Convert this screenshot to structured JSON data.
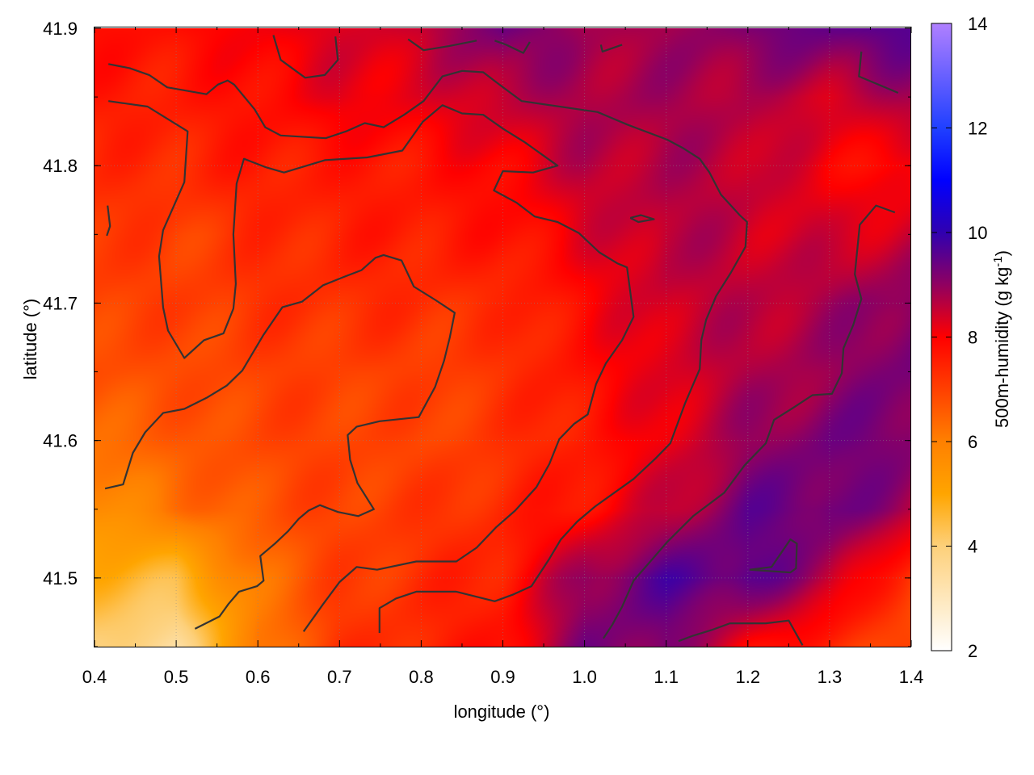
{
  "chart_data": {
    "type": "heatmap",
    "title": "",
    "xlabel": "longitude (°)",
    "ylabel": "latitude (°)",
    "colorbar_label": "500m-humidity (g kg",
    "colorbar_label_sup": "-1",
    "colorbar_label_end": ")",
    "xlim": [
      0.4,
      1.4
    ],
    "ylim": [
      41.45,
      41.9
    ],
    "xticks": [
      "0.4",
      "0.5",
      "0.6",
      "0.7",
      "0.8",
      "0.9",
      "1.0",
      "1.1",
      "1.2",
      "1.3",
      "1.4"
    ],
    "yticks": [
      "41.5",
      "41.6",
      "41.7",
      "41.8",
      "41.9"
    ],
    "grid": true,
    "colorbar": {
      "range": [
        2,
        14
      ],
      "ticks": [
        "2",
        "4",
        "6",
        "8",
        "10",
        "12",
        "14"
      ],
      "stops": [
        [
          2,
          "#ffffff"
        ],
        [
          4,
          "#fdd07a"
        ],
        [
          5,
          "#ffa500"
        ],
        [
          6,
          "#ff8000"
        ],
        [
          7,
          "#ff4000"
        ],
        [
          8,
          "#ff0000"
        ],
        [
          9,
          "#900060"
        ],
        [
          10,
          "#3000b0"
        ],
        [
          11,
          "#0000ff"
        ],
        [
          12,
          "#2040ff"
        ],
        [
          14,
          "#b080ff"
        ]
      ]
    },
    "grid_lon": [
      0.4,
      0.5,
      0.6,
      0.7,
      0.8,
      0.9,
      1.0,
      1.1,
      1.2,
      1.3,
      1.4
    ],
    "grid_lat": [
      41.9,
      41.85,
      41.8,
      41.75,
      41.7,
      41.65,
      41.6,
      41.55,
      41.5,
      41.45
    ],
    "values": [
      [
        7.8,
        7.8,
        8.1,
        8.3,
        8.5,
        9.4,
        8.8,
        8.8,
        9.2,
        9.5,
        9.6
      ],
      [
        7.6,
        7.6,
        7.8,
        8.2,
        8.2,
        8.6,
        8.8,
        8.8,
        8.7,
        8.4,
        8.8
      ],
      [
        7.3,
        7.4,
        7.6,
        7.6,
        7.7,
        8.0,
        8.6,
        8.7,
        8.6,
        8.0,
        7.8
      ],
      [
        7.2,
        7.0,
        7.3,
        7.5,
        7.6,
        7.7,
        8.2,
        8.7,
        8.5,
        8.3,
        8.5
      ],
      [
        7.0,
        7.0,
        7.2,
        7.3,
        7.3,
        7.3,
        7.9,
        8.5,
        8.6,
        8.8,
        9.2
      ],
      [
        6.8,
        6.8,
        7.0,
        7.0,
        7.0,
        7.2,
        7.8,
        8.3,
        8.7,
        8.9,
        9.3
      ],
      [
        6.3,
        6.6,
        6.9,
        7.0,
        6.9,
        7.2,
        7.6,
        8.2,
        8.9,
        9.3,
        9.2
      ],
      [
        5.6,
        6.2,
        6.7,
        7.0,
        7.1,
        7.4,
        7.8,
        8.5,
        9.4,
        9.4,
        8.8
      ],
      [
        4.8,
        4.5,
        6.2,
        7.0,
        7.3,
        7.6,
        9.0,
        9.6,
        9.6,
        8.7,
        7.0
      ],
      [
        4.0,
        3.5,
        6.0,
        7.2,
        7.4,
        7.8,
        9.2,
        9.2,
        8.0,
        7.4,
        6.8
      ]
    ],
    "contour_color": "#333333",
    "contours": [
      [
        [
          0.417,
          41.874
        ],
        [
          0.443,
          41.871
        ],
        [
          0.467,
          41.866
        ],
        [
          0.489,
          41.857
        ],
        [
          0.537,
          41.852
        ],
        [
          0.551,
          41.859
        ],
        [
          0.563,
          41.862
        ],
        [
          0.571,
          41.859
        ],
        [
          0.596,
          41.841
        ],
        [
          0.609,
          41.828
        ],
        [
          0.628,
          41.822
        ],
        [
          0.683,
          41.82
        ],
        [
          0.708,
          41.825
        ],
        [
          0.731,
          41.831
        ],
        [
          0.754,
          41.828
        ],
        [
          0.779,
          41.837
        ],
        [
          0.803,
          41.847
        ],
        [
          0.826,
          41.865
        ],
        [
          0.85,
          41.869
        ],
        [
          0.876,
          41.868
        ],
        [
          0.898,
          41.858
        ],
        [
          0.923,
          41.847
        ],
        [
          1.016,
          41.839
        ],
        [
          1.052,
          41.83
        ],
        [
          1.101,
          41.819
        ],
        [
          1.12,
          41.813
        ],
        [
          1.141,
          41.805
        ],
        [
          1.153,
          41.795
        ],
        [
          1.167,
          41.779
        ],
        [
          1.19,
          41.764
        ],
        [
          1.199,
          41.759
        ],
        [
          1.197,
          41.741
        ],
        [
          1.179,
          41.722
        ],
        [
          1.161,
          41.705
        ],
        [
          1.149,
          41.688
        ],
        [
          1.143,
          41.673
        ],
        [
          1.141,
          41.652
        ],
        [
          1.123,
          41.627
        ],
        [
          1.105,
          41.598
        ],
        [
          1.087,
          41.587
        ],
        [
          1.06,
          41.572
        ],
        [
          1.013,
          41.552
        ],
        [
          0.991,
          41.541
        ],
        [
          0.971,
          41.528
        ],
        [
          0.957,
          41.514
        ],
        [
          0.935,
          41.494
        ],
        [
          0.913,
          41.488
        ],
        [
          0.89,
          41.483
        ],
        [
          0.843,
          41.49
        ],
        [
          0.794,
          41.49
        ],
        [
          0.769,
          41.485
        ],
        [
          0.749,
          41.478
        ],
        [
          0.749,
          41.46
        ]
      ],
      [
        [
          0.417,
          41.847
        ],
        [
          0.465,
          41.843
        ],
        [
          0.514,
          41.825
        ],
        [
          0.51,
          41.788
        ],
        [
          0.484,
          41.753
        ],
        [
          0.479,
          41.734
        ],
        [
          0.484,
          41.697
        ],
        [
          0.49,
          41.68
        ],
        [
          0.51,
          41.66
        ],
        [
          0.534,
          41.673
        ],
        [
          0.558,
          41.678
        ],
        [
          0.57,
          41.696
        ],
        [
          0.573,
          41.714
        ],
        [
          0.57,
          41.75
        ],
        [
          0.574,
          41.787
        ],
        [
          0.583,
          41.805
        ],
        [
          0.609,
          41.799
        ],
        [
          0.632,
          41.795
        ],
        [
          0.682,
          41.804
        ],
        [
          0.734,
          41.806
        ],
        [
          0.777,
          41.811
        ],
        [
          0.802,
          41.832
        ],
        [
          0.826,
          41.844
        ],
        [
          0.85,
          41.838
        ],
        [
          0.876,
          41.837
        ],
        [
          0.9,
          41.827
        ],
        [
          0.927,
          41.817
        ],
        [
          0.967,
          41.8
        ],
        [
          0.937,
          41.795
        ],
        [
          0.9,
          41.796
        ],
        [
          0.889,
          41.782
        ],
        [
          0.917,
          41.773
        ],
        [
          0.939,
          41.763
        ],
        [
          0.967,
          41.759
        ],
        [
          0.993,
          41.751
        ],
        [
          1.018,
          41.737
        ],
        [
          1.04,
          41.729
        ],
        [
          1.052,
          41.726
        ],
        [
          1.06,
          41.69
        ],
        [
          1.046,
          41.673
        ],
        [
          1.026,
          41.656
        ],
        [
          1.014,
          41.641
        ],
        [
          1.004,
          41.619
        ],
        [
          0.987,
          41.612
        ],
        [
          0.969,
          41.601
        ],
        [
          0.957,
          41.583
        ],
        [
          0.941,
          41.566
        ],
        [
          0.915,
          41.549
        ],
        [
          0.892,
          41.537
        ],
        [
          0.868,
          41.522
        ],
        [
          0.843,
          41.512
        ],
        [
          0.794,
          41.512
        ],
        [
          0.746,
          41.506
        ],
        [
          0.721,
          41.508
        ],
        [
          0.7,
          41.497
        ],
        [
          0.68,
          41.481
        ],
        [
          0.656,
          41.461
        ]
      ],
      [
        [
          0.413,
          41.565
        ],
        [
          0.435,
          41.568
        ],
        [
          0.447,
          41.591
        ],
        [
          0.462,
          41.606
        ],
        [
          0.484,
          41.62
        ],
        [
          0.51,
          41.623
        ],
        [
          0.537,
          41.631
        ],
        [
          0.562,
          41.64
        ],
        [
          0.581,
          41.651
        ],
        [
          0.607,
          41.677
        ],
        [
          0.63,
          41.697
        ],
        [
          0.654,
          41.701
        ],
        [
          0.68,
          41.713
        ],
        [
          0.705,
          41.719
        ],
        [
          0.727,
          41.724
        ],
        [
          0.744,
          41.733
        ],
        [
          0.754,
          41.735
        ],
        [
          0.776,
          41.731
        ],
        [
          0.791,
          41.712
        ],
        [
          0.818,
          41.702
        ],
        [
          0.841,
          41.693
        ],
        [
          0.835,
          41.675
        ],
        [
          0.828,
          41.658
        ],
        [
          0.817,
          41.639
        ],
        [
          0.797,
          41.617
        ],
        [
          0.749,
          41.614
        ],
        [
          0.721,
          41.61
        ],
        [
          0.71,
          41.604
        ],
        [
          0.713,
          41.586
        ],
        [
          0.722,
          41.569
        ],
        [
          0.742,
          41.55
        ],
        [
          0.723,
          41.545
        ],
        [
          0.698,
          41.548
        ],
        [
          0.676,
          41.553
        ],
        [
          0.662,
          41.549
        ],
        [
          0.65,
          41.543
        ],
        [
          0.637,
          41.534
        ],
        [
          0.621,
          41.525
        ],
        [
          0.603,
          41.516
        ],
        [
          0.607,
          41.498
        ],
        [
          0.599,
          41.494
        ],
        [
          0.577,
          41.49
        ],
        [
          0.564,
          41.481
        ],
        [
          0.553,
          41.472
        ],
        [
          0.523,
          41.463
        ]
      ],
      [
        [
          1.38,
          41.766
        ],
        [
          1.357,
          41.771
        ],
        [
          1.337,
          41.757
        ],
        [
          1.331,
          41.721
        ],
        [
          1.339,
          41.703
        ],
        [
          1.329,
          41.684
        ],
        [
          1.317,
          41.667
        ],
        [
          1.315,
          41.649
        ],
        [
          1.303,
          41.634
        ],
        [
          1.279,
          41.633
        ],
        [
          1.256,
          41.624
        ],
        [
          1.232,
          41.615
        ],
        [
          1.222,
          41.598
        ],
        [
          1.196,
          41.582
        ],
        [
          1.171,
          41.562
        ],
        [
          1.133,
          41.545
        ],
        [
          1.101,
          41.526
        ],
        [
          1.082,
          41.513
        ],
        [
          1.06,
          41.498
        ],
        [
          1.046,
          41.479
        ],
        [
          1.034,
          41.466
        ],
        [
          1.023,
          41.456
        ]
      ],
      [
        [
          1.115,
          41.454
        ],
        [
          1.133,
          41.458
        ],
        [
          1.155,
          41.462
        ],
        [
          1.178,
          41.467
        ],
        [
          1.222,
          41.467
        ],
        [
          1.25,
          41.469
        ],
        [
          1.267,
          41.451
        ]
      ],
      [
        [
          1.202,
          41.506
        ],
        [
          1.229,
          41.508
        ],
        [
          1.252,
          41.528
        ],
        [
          1.26,
          41.525
        ],
        [
          1.259,
          41.507
        ],
        [
          1.252,
          41.504
        ],
        [
          1.202,
          41.506
        ]
      ],
      [
        [
          0.619,
          41.895
        ],
        [
          0.628,
          41.877
        ],
        [
          0.658,
          41.864
        ],
        [
          0.682,
          41.866
        ],
        [
          0.698,
          41.877
        ],
        [
          0.695,
          41.894
        ]
      ],
      [
        [
          0.784,
          41.892
        ],
        [
          0.803,
          41.884
        ],
        [
          0.834,
          41.887
        ],
        [
          0.868,
          41.891
        ]
      ],
      [
        [
          0.89,
          41.891
        ],
        [
          0.904,
          41.888
        ],
        [
          0.925,
          41.882
        ],
        [
          0.933,
          41.89
        ]
      ],
      [
        [
          1.02,
          41.888
        ],
        [
          1.022,
          41.883
        ],
        [
          1.046,
          41.888
        ]
      ],
      [
        [
          1.339,
          41.883
        ],
        [
          1.336,
          41.865
        ],
        [
          1.384,
          41.853
        ]
      ],
      [
        [
          0.416,
          41.771
        ],
        [
          0.419,
          41.756
        ],
        [
          0.415,
          41.749
        ]
      ],
      [
        [
          1.056,
          41.762
        ],
        [
          1.069,
          41.764
        ],
        [
          1.085,
          41.761
        ],
        [
          1.066,
          41.759
        ],
        [
          1.056,
          41.762
        ]
      ]
    ]
  }
}
